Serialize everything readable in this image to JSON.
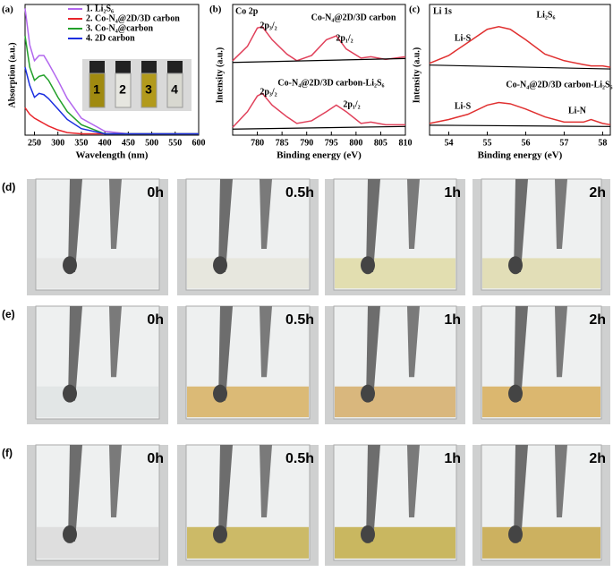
{
  "chart_data": [
    {
      "type": "line",
      "panel": "(a)",
      "ylabel": "Absorption (a.u.)",
      "xlabel": "Wavelength (nm)",
      "x": [
        230,
        240,
        250,
        260,
        270,
        280,
        300,
        320,
        350,
        400,
        450,
        500,
        600
      ],
      "xlim": [
        230,
        600
      ],
      "xticks": [
        250,
        300,
        350,
        400,
        450,
        500,
        550,
        600
      ],
      "ylim": [
        0,
        1
      ],
      "series": [
        {
          "name": "1. Li₂S₆",
          "color": "#b266ee",
          "values": [
            0.97,
            0.69,
            0.57,
            0.61,
            0.61,
            0.55,
            0.42,
            0.28,
            0.13,
            0.03,
            0.01,
            0.01,
            0.01
          ]
        },
        {
          "name": "2. Co-N₄@2D/3D carbon",
          "color": "#e8242b",
          "values": [
            0.21,
            0.16,
            0.13,
            0.11,
            0.09,
            0.07,
            0.04,
            0.02,
            0.01,
            0.01,
            0.01,
            0.01,
            0.01
          ]
        },
        {
          "name": "3. Co-N₄@carbon",
          "color": "#22a02a",
          "values": [
            0.76,
            0.52,
            0.42,
            0.45,
            0.46,
            0.42,
            0.29,
            0.18,
            0.08,
            0.01,
            0.01,
            0.01,
            0.01
          ]
        },
        {
          "name": "4. 2D carbon",
          "color": "#1a2ee0",
          "values": [
            0.52,
            0.38,
            0.29,
            0.32,
            0.31,
            0.28,
            0.2,
            0.12,
            0.05,
            0.01,
            0.01,
            0.01,
            0.01
          ]
        }
      ],
      "inset_labels": [
        "1",
        "2",
        "3",
        "4"
      ]
    },
    {
      "type": "line",
      "panel": "(b)",
      "ylabel": "Intensity (a.u.)",
      "xlabel": "Binding energy (eV)",
      "x": [
        775,
        778,
        780,
        781,
        783,
        786,
        788,
        791,
        794,
        796,
        798,
        801,
        803,
        806,
        810
      ],
      "xlim": [
        775,
        810
      ],
      "xticks": [
        780,
        785,
        790,
        795,
        800,
        805,
        810
      ],
      "ylim": [
        0,
        1
      ],
      "series": [
        {
          "color": "#e0405a",
          "values": [
            0.57,
            0.68,
            0.82,
            0.83,
            0.73,
            0.62,
            0.57,
            0.61,
            0.73,
            0.76,
            0.66,
            0.59,
            0.6,
            0.58,
            0.6
          ]
        },
        {
          "color": "#e0405a",
          "values": [
            0.06,
            0.18,
            0.3,
            0.32,
            0.23,
            0.14,
            0.09,
            0.11,
            0.18,
            0.23,
            0.18,
            0.09,
            0.1,
            0.08,
            0.08
          ]
        }
      ],
      "annotations": [
        "Co 2p",
        "Co-N₄@2D/3D carbon",
        "2p₃/₂",
        "2p₁/₂",
        "Co-N₄@2D/3D carbon-Li₂S₆",
        "2p₃/₂",
        "2p₁/₂"
      ]
    },
    {
      "type": "line",
      "panel": "(c)",
      "ylabel": "Intensity (a.u.)",
      "xlabel": "Binding energy (eV)",
      "x": [
        53.5,
        54,
        54.5,
        55,
        55.3,
        55.6,
        56,
        56.5,
        57,
        57.5,
        57.7,
        58,
        58.2
      ],
      "xlim": [
        53.5,
        58.2
      ],
      "xticks": [
        54,
        55,
        56,
        57,
        58
      ],
      "ylim": [
        0,
        1
      ],
      "series": [
        {
          "color": "#e03030",
          "values": [
            0.55,
            0.61,
            0.71,
            0.81,
            0.83,
            0.81,
            0.73,
            0.62,
            0.57,
            0.54,
            0.53,
            0.53,
            0.52
          ]
        },
        {
          "color": "#e03030",
          "values": [
            0.09,
            0.12,
            0.16,
            0.23,
            0.25,
            0.24,
            0.2,
            0.14,
            0.1,
            0.1,
            0.12,
            0.09,
            0.08
          ]
        }
      ],
      "annotations": [
        "Li 1s",
        "Li₂S₆",
        "Li-S",
        "Co-N₄@2D/3D carbon-Li₂S₆",
        "Li-S",
        "Li-N"
      ]
    }
  ],
  "photos": [
    {
      "label": "(d)",
      "times": [
        "0h",
        "0.5h",
        "1h",
        "2h"
      ]
    },
    {
      "label": "(e)",
      "times": [
        "0h",
        "0.5h",
        "1h",
        "2h"
      ]
    },
    {
      "label": "(f)",
      "times": [
        "0h",
        "0.5h",
        "1h",
        "2h"
      ]
    }
  ]
}
